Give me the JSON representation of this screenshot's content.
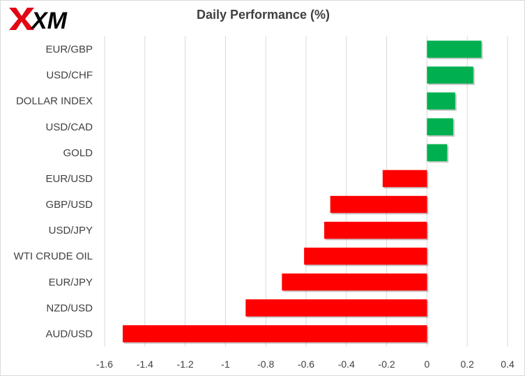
{
  "brand": {
    "logo_text": "XM"
  },
  "chart_data": {
    "type": "bar",
    "orientation": "horizontal",
    "title": "Daily Performance  (%)",
    "categories": [
      "EUR/GBP",
      "USD/CHF",
      "DOLLAR INDEX",
      "USD/CAD",
      "GOLD",
      "EUR/USD",
      "GBP/USD",
      "USD/JPY",
      "WTI CRUDE OIL",
      "EUR/JPY",
      "NZD/USD",
      "AUD/USD"
    ],
    "values": [
      0.27,
      0.23,
      0.14,
      0.13,
      0.1,
      -0.22,
      -0.48,
      -0.51,
      -0.61,
      -0.72,
      -0.9,
      -1.51
    ],
    "xlim": [
      -1.6,
      0.4
    ],
    "xticks": [
      -1.6,
      -1.4,
      -1.2,
      -1,
      -0.8,
      -0.6,
      -0.4,
      -0.2,
      0,
      0.2,
      0.4
    ],
    "xtick_labels": [
      "-1.6",
      "-1.4",
      "-1.2",
      "-1",
      "-0.8",
      "-0.6",
      "-0.4",
      "-0.2",
      "0",
      "0.2",
      "0.4"
    ],
    "grid": "vertical",
    "colors": {
      "positive": "#00b050",
      "negative": "#ff0000",
      "grid": "#d9d9d9"
    }
  }
}
